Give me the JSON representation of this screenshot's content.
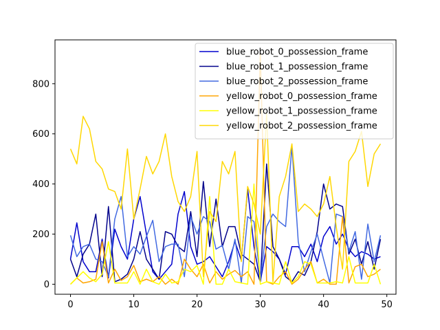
{
  "chart_data": {
    "type": "line",
    "title": "",
    "xlabel": "",
    "ylabel": "",
    "xlim": [
      -2.45,
      51.45
    ],
    "ylim": [
      -40,
      975
    ],
    "xticks": [
      0,
      10,
      20,
      30,
      40,
      50
    ],
    "yticks": [
      0,
      200,
      400,
      600,
      800
    ],
    "legend_position": "top-right",
    "grid": false,
    "x": [
      0,
      1,
      2,
      3,
      4,
      5,
      6,
      7,
      8,
      9,
      10,
      11,
      12,
      13,
      14,
      15,
      16,
      17,
      18,
      19,
      20,
      21,
      22,
      23,
      24,
      25,
      26,
      27,
      28,
      29,
      30,
      31,
      32,
      33,
      34,
      35,
      36,
      37,
      38,
      39,
      40,
      41,
      42,
      43,
      44,
      45,
      46,
      47,
      48,
      49
    ],
    "series": [
      {
        "name": "blue_robot_0_possession_frame",
        "color": "#0000cd",
        "values": [
          100,
          245,
          90,
          50,
          50,
          180,
          25,
          220,
          150,
          100,
          260,
          350,
          200,
          50,
          20,
          50,
          80,
          280,
          370,
          150,
          80,
          90,
          110,
          70,
          30,
          90,
          170,
          95,
          380,
          150,
          10,
          150,
          130,
          100,
          40,
          150,
          150,
          110,
          160,
          90,
          190,
          230,
          160,
          200,
          140,
          110,
          130,
          120,
          100,
          110
        ]
      },
      {
        "name": "blue_robot_1_possession_frame",
        "color": "#00008b",
        "values": [
          100,
          30,
          120,
          160,
          280,
          30,
          310,
          10,
          20,
          40,
          100,
          210,
          100,
          60,
          20,
          210,
          200,
          150,
          130,
          290,
          110,
          410,
          150,
          340,
          150,
          230,
          230,
          120,
          100,
          80,
          10,
          480,
          150,
          100,
          30,
          10,
          50,
          35,
          90,
          210,
          400,
          300,
          320,
          310,
          120,
          180,
          80,
          170,
          60,
          180
        ]
      },
      {
        "name": "blue_robot_2_possession_frame",
        "color": "#4169e1",
        "values": [
          195,
          110,
          150,
          160,
          100,
          90,
          30,
          260,
          350,
          110,
          150,
          120,
          190,
          255,
          90,
          150,
          160,
          160,
          30,
          270,
          200,
          270,
          250,
          140,
          155,
          60,
          180,
          5,
          270,
          250,
          20,
          230,
          280,
          250,
          230,
          550,
          170,
          50,
          130,
          200,
          100,
          5,
          280,
          270,
          130,
          210,
          20,
          240,
          90,
          195
        ]
      },
      {
        "name": "yellow_robot_0_possession_frame",
        "color": "#ffa500",
        "values": [
          0,
          25,
          5,
          10,
          20,
          170,
          5,
          60,
          15,
          30,
          75,
          10,
          20,
          10,
          30,
          0,
          20,
          0,
          100,
          60,
          30,
          80,
          5,
          50,
          20,
          40,
          55,
          30,
          50,
          0,
          920,
          10,
          0,
          30,
          50,
          0,
          20,
          60,
          90,
          5,
          20,
          0,
          0,
          270,
          5,
          70,
          80,
          30,
          40,
          60
        ]
      },
      {
        "name": "yellow_robot_1_possession_frame",
        "color": "#ffff00",
        "values": [
          0,
          25,
          50,
          25,
          10,
          40,
          170,
          5,
          5,
          5,
          50,
          0,
          60,
          10,
          0,
          40,
          5,
          10,
          60,
          50,
          75,
          0,
          350,
          0,
          0,
          60,
          10,
          5,
          0,
          400,
          0,
          10,
          5,
          0,
          90,
          5,
          30,
          90,
          80,
          5,
          5,
          5,
          10,
          5,
          110,
          5,
          5,
          5,
          80,
          0
        ]
      },
      {
        "name": "yellow_robot_2_possession_frame",
        "color": "#ffd700",
        "values": [
          540,
          480,
          670,
          620,
          490,
          460,
          380,
          370,
          300,
          540,
          260,
          380,
          510,
          440,
          490,
          600,
          430,
          330,
          290,
          350,
          530,
          30,
          290,
          250,
          490,
          440,
          530,
          90,
          390,
          320,
          200,
          680,
          10,
          350,
          430,
          560,
          290,
          320,
          300,
          270,
          320,
          430,
          230,
          60,
          490,
          530,
          610,
          390,
          520,
          560
        ]
      }
    ]
  }
}
